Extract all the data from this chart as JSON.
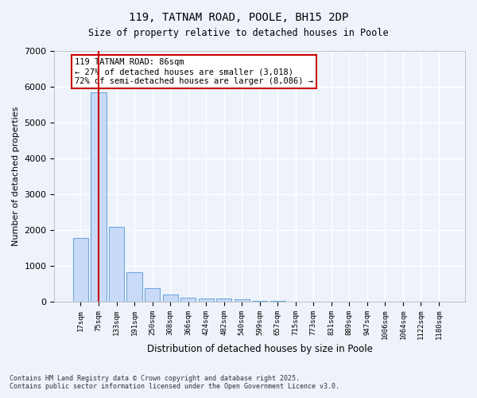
{
  "title1": "119, TATNAM ROAD, POOLE, BH15 2DP",
  "title2": "Size of property relative to detached houses in Poole",
  "xlabel": "Distribution of detached houses by size in Poole",
  "ylabel": "Number of detached properties",
  "categories": [
    "17sqm",
    "75sqm",
    "133sqm",
    "191sqm",
    "250sqm",
    "308sqm",
    "366sqm",
    "424sqm",
    "482sqm",
    "540sqm",
    "599sqm",
    "657sqm",
    "715sqm",
    "773sqm",
    "831sqm",
    "889sqm",
    "947sqm",
    "1006sqm",
    "1064sqm",
    "1122sqm",
    "1180sqm"
  ],
  "values": [
    1780,
    5850,
    2100,
    820,
    370,
    200,
    120,
    100,
    80,
    60,
    30,
    15,
    8,
    5,
    4,
    3,
    2,
    2,
    1,
    1,
    1
  ],
  "bar_color": "#c9daf8",
  "bar_edge_color": "#6fa8dc",
  "highlight_bar_index": 1,
  "highlight_bar_color": "#c9daf8",
  "highlight_line_color": "#cc0000",
  "annotation_title": "119 TATNAM ROAD: 86sqm",
  "annotation_line1": "← 27% of detached houses are smaller (3,018)",
  "annotation_line2": "72% of semi-detached houses are larger (8,086) →",
  "annotation_box_color": "#cc0000",
  "ylim": [
    0,
    7000
  ],
  "yticks": [
    0,
    1000,
    2000,
    3000,
    4000,
    5000,
    6000,
    7000
  ],
  "background_color": "#eef3fb",
  "grid_color": "#ffffff",
  "footnote1": "Contains HM Land Registry data © Crown copyright and database right 2025.",
  "footnote2": "Contains public sector information licensed under the Open Government Licence v3.0."
}
